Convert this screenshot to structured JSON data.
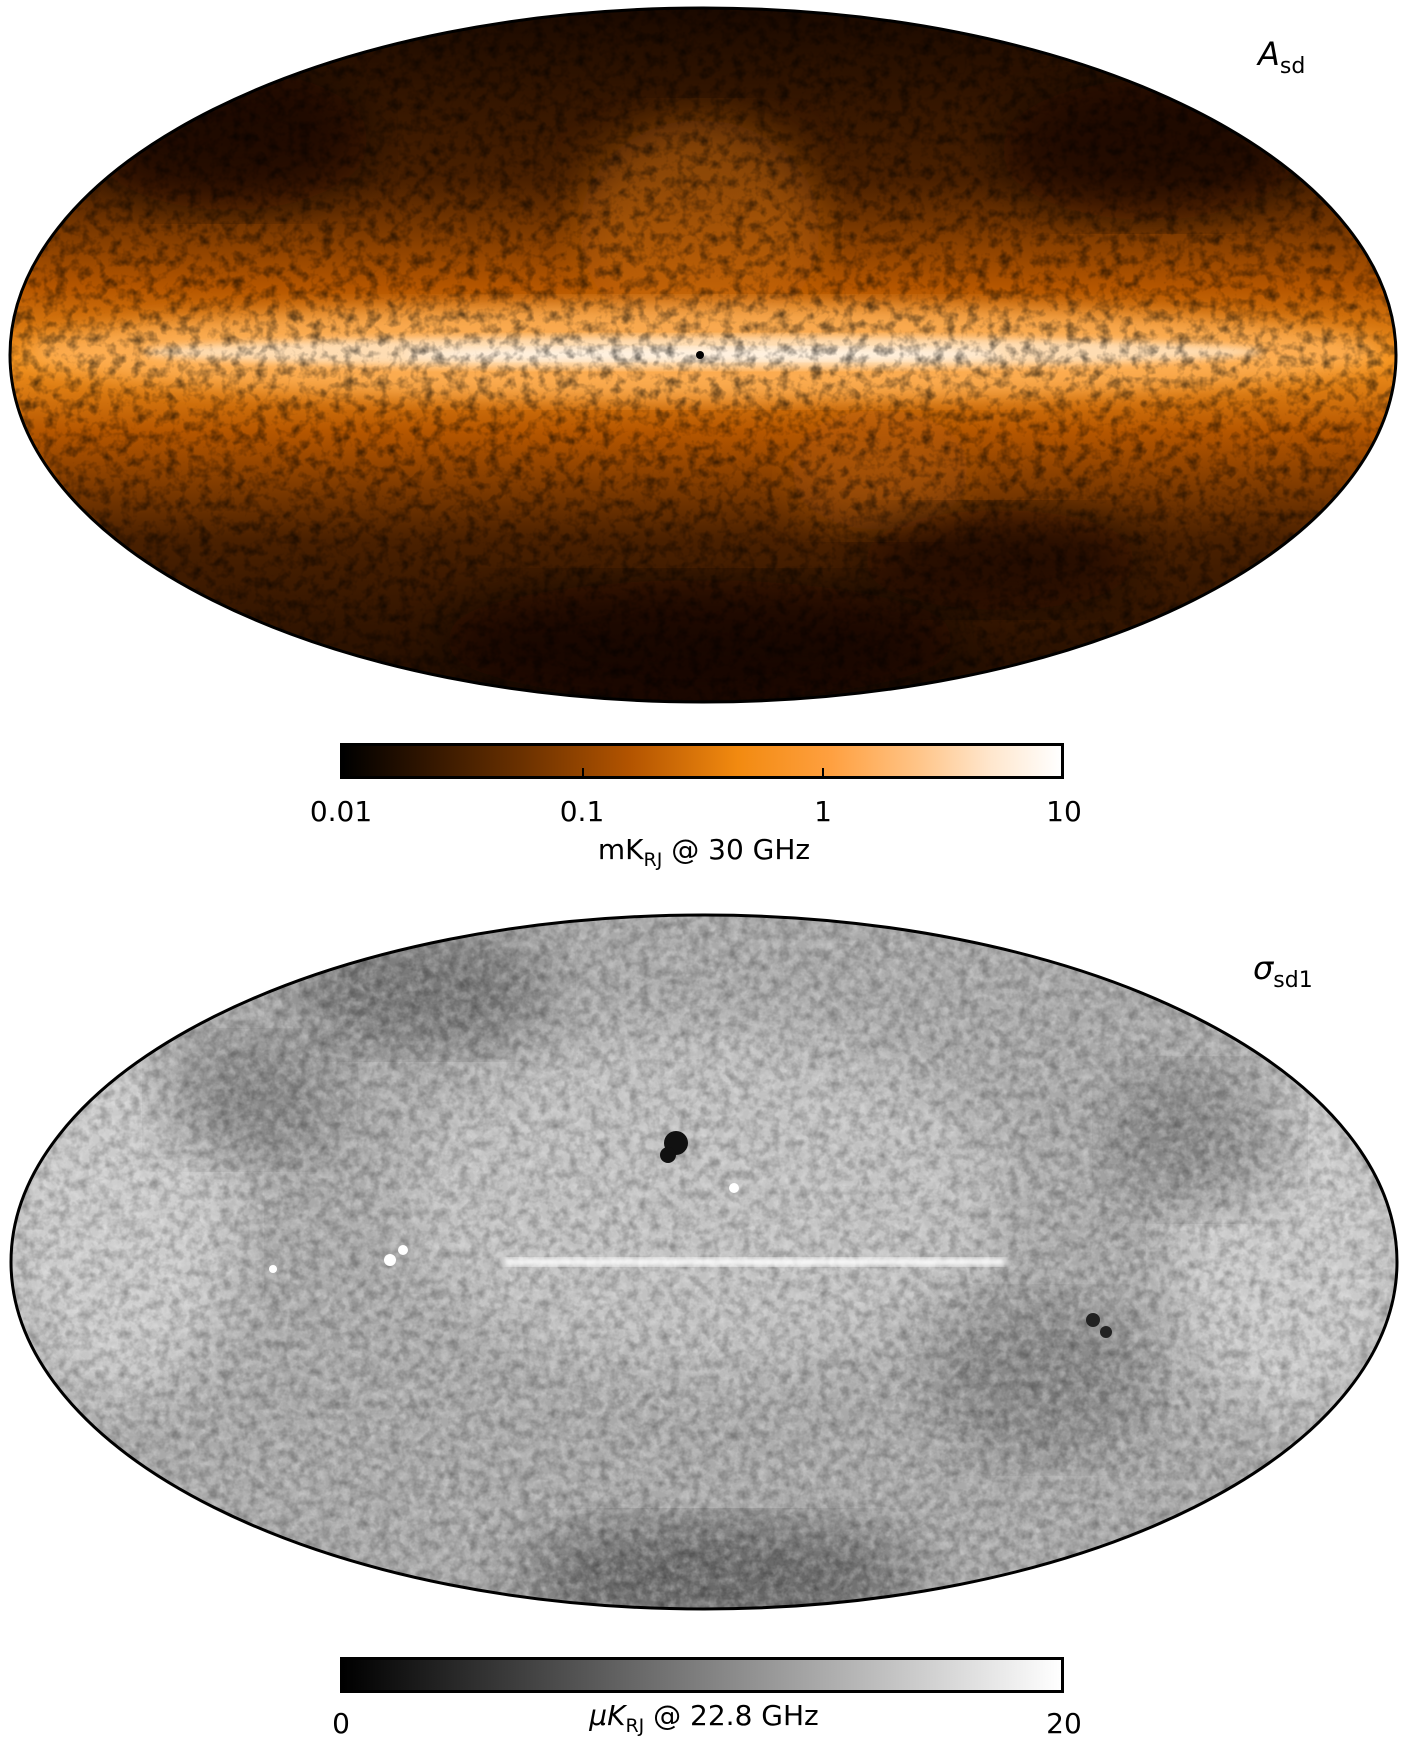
{
  "panels": [
    {
      "label_symbol": "A",
      "label_subscript": "sd",
      "colormap": "orange",
      "colorbar": {
        "scale": "log",
        "ticks": [
          "0.01",
          "0.1",
          "1",
          "10"
        ],
        "unit_prefix": "mK",
        "unit_subscript": "RJ",
        "unit_suffix": " @ 30 GHz"
      }
    },
    {
      "label_symbol": "σ",
      "label_subscript": "sd1",
      "colormap": "gray",
      "colorbar": {
        "scale": "linear",
        "ticks": [
          "0",
          "20"
        ],
        "unit_prefix": "μK",
        "unit_subscript": "RJ",
        "unit_suffix": " @ 22.8 GHz"
      }
    }
  ]
}
